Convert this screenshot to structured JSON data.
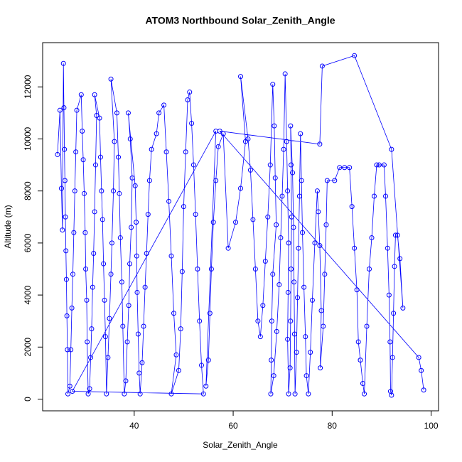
{
  "chart_data": {
    "type": "scatter",
    "title": "ATOM3 Northbound Solar_Zenith_Angle",
    "x_label": "Solar_Zenith_Angle",
    "y_label": "Altitude (m)",
    "color": "#0000ff",
    "xlim": [
      21.5,
      101.5
    ],
    "ylim": [
      -450,
      13700
    ],
    "xticks": [
      40,
      60,
      80,
      100
    ],
    "yticks": [
      0,
      2000,
      4000,
      6000,
      8000,
      10000,
      12000
    ],
    "x": [
      24.5,
      25.0,
      25.3,
      25.5,
      25.7,
      25.8,
      25.9,
      26.0,
      26.1,
      26.2,
      26.3,
      26.4,
      26.5,
      26.6,
      27.0,
      27.2,
      27.4,
      27.6,
      27.8,
      28.0,
      28.2,
      28.4,
      29.3,
      29.5,
      29.7,
      29.9,
      30.1,
      30.2,
      30.4,
      30.5,
      30.7,
      31.0,
      31.2,
      31.4,
      31.6,
      31.8,
      32.0,
      32.2,
      32.4,
      32.0,
      33.0,
      33.2,
      33.4,
      33.6,
      33.8,
      34.0,
      34.2,
      34.4,
      34.7,
      35.0,
      35.3,
      35.5,
      35.8,
      36.0,
      35.3,
      36.5,
      36.8,
      37.0,
      37.2,
      37.5,
      37.7,
      38.0,
      38.3,
      38.6,
      38.9,
      39.1,
      39.4,
      39.6,
      39.2,
      38.8,
      40.2,
      40.4,
      40.5,
      40.6,
      40.8,
      41.0,
      41.2,
      41.6,
      41.9,
      42.2,
      42.5,
      42.8,
      43.1,
      43.5,
      44.5,
      45.0,
      46.0,
      46.5,
      47.0,
      47.5,
      48.0,
      48.5,
      47.5,
      49.0,
      49.4,
      49.7,
      50.0,
      50.4,
      50.8,
      51.2,
      51.6,
      52.0,
      52.4,
      52.8,
      53.2,
      53.6,
      54.0,
      27.5,
      56.5,
      54.5,
      55.0,
      55.3,
      55.6,
      56.0,
      56.5,
      57.0,
      58.0,
      59.0,
      60.5,
      61.5,
      62.5,
      61.5,
      63.0,
      63.5,
      64.0,
      64.5,
      65.0,
      65.5,
      66.0,
      66.5,
      67.0,
      67.5,
      68.0,
      68.3,
      68.5,
      68.7,
      68.0,
      67.8,
      67.7,
      67.6,
      68.2,
      68.8,
      69.3,
      69.6,
      69.9,
      70.2,
      70.5,
      70.8,
      71.0,
      71.2,
      71.1,
      71.0,
      71.2,
      71.5,
      71.6,
      71.7,
      71.8,
      71.7,
      71.6,
      72.0,
      72.2,
      72.3,
      72.4,
      72.5,
      72.8,
      73.0,
      73.2,
      73.4,
      73.6,
      73.8,
      74.0,
      74.3,
      74.6,
      74.8,
      75.2,
      75.6,
      76.0,
      76.5,
      77.0,
      77.2,
      77.5,
      77.8,
      77.6,
      78.2,
      78.5,
      78.8,
      79.0,
      80.5,
      81.5,
      82.5,
      83.5,
      84.0,
      84.5,
      85.0,
      85.3,
      85.7,
      86.2,
      86.5,
      87.0,
      87.5,
      88.0,
      88.5,
      89.0,
      89.5,
      90.5,
      90.8,
      91.2,
      91.5,
      91.7,
      91.8,
      92.0,
      92.2,
      92.4,
      92.6,
      92.8,
      93.2,
      93.7,
      94.3,
      92.0,
      84.5,
      78.0,
      77.5,
      57.3,
      97.5,
      98.0,
      98.5
    ],
    "values": [
      9400,
      11100,
      8100,
      6500,
      12900,
      11200,
      9600,
      8400,
      7000,
      5700,
      4600,
      3200,
      1900,
      200,
      500,
      1900,
      3500,
      4800,
      6400,
      8000,
      9500,
      11100,
      11700,
      10300,
      9200,
      7900,
      6400,
      5000,
      3800,
      2200,
      200,
      400,
      1600,
      2700,
      4300,
      5600,
      7200,
      9000,
      10900,
      11700,
      10800,
      9300,
      8000,
      6900,
      5200,
      3800,
      2400,
      200,
      1600,
      3100,
      4800,
      6000,
      8000,
      9900,
      12300,
      11000,
      9300,
      7900,
      6200,
      4500,
      2800,
      200,
      700,
      2200,
      3600,
      5200,
      6600,
      8500,
      10000,
      11000,
      8200,
      6800,
      5500,
      4100,
      2500,
      1000,
      200,
      1400,
      2800,
      4300,
      5600,
      7100,
      8400,
      9600,
      10200,
      11000,
      11300,
      9500,
      7600,
      5500,
      3300,
      1700,
      200,
      1100,
      2700,
      4900,
      7400,
      9500,
      11500,
      11800,
      10600,
      9000,
      7100,
      5000,
      3000,
      1300,
      200,
      300,
      10300,
      500,
      1500,
      3300,
      5000,
      6800,
      8400,
      9700,
      10200,
      5800,
      6800,
      8100,
      9900,
      12400,
      10000,
      8800,
      6900,
      5000,
      3000,
      2400,
      3600,
      5300,
      7000,
      9000,
      12100,
      10500,
      8500,
      6700,
      4800,
      3000,
      1500,
      200,
      900,
      2600,
      4400,
      6200,
      7800,
      9600,
      12500,
      9900,
      8000,
      6000,
      4100,
      2300,
      200,
      1200,
      3000,
      5000,
      7000,
      9000,
      10500,
      8700,
      6600,
      4500,
      2500,
      200,
      1800,
      3900,
      5800,
      7800,
      10200,
      8400,
      6400,
      4300,
      2400,
      900,
      200,
      1800,
      3800,
      6000,
      8000,
      7200,
      5900,
      3400,
      1200,
      2800,
      4800,
      6700,
      8400,
      8400,
      8900,
      8900,
      8900,
      7400,
      5800,
      4200,
      2200,
      1500,
      600,
      200,
      2800,
      5000,
      6200,
      7800,
      9000,
      9000,
      9000,
      7800,
      5800,
      4000,
      2200,
      300,
      150,
      1600,
      3300,
      5100,
      6300,
      6300,
      5400,
      3500,
      9600,
      13200,
      12800,
      9800,
      10300,
      1600,
      1100,
      350
    ]
  }
}
